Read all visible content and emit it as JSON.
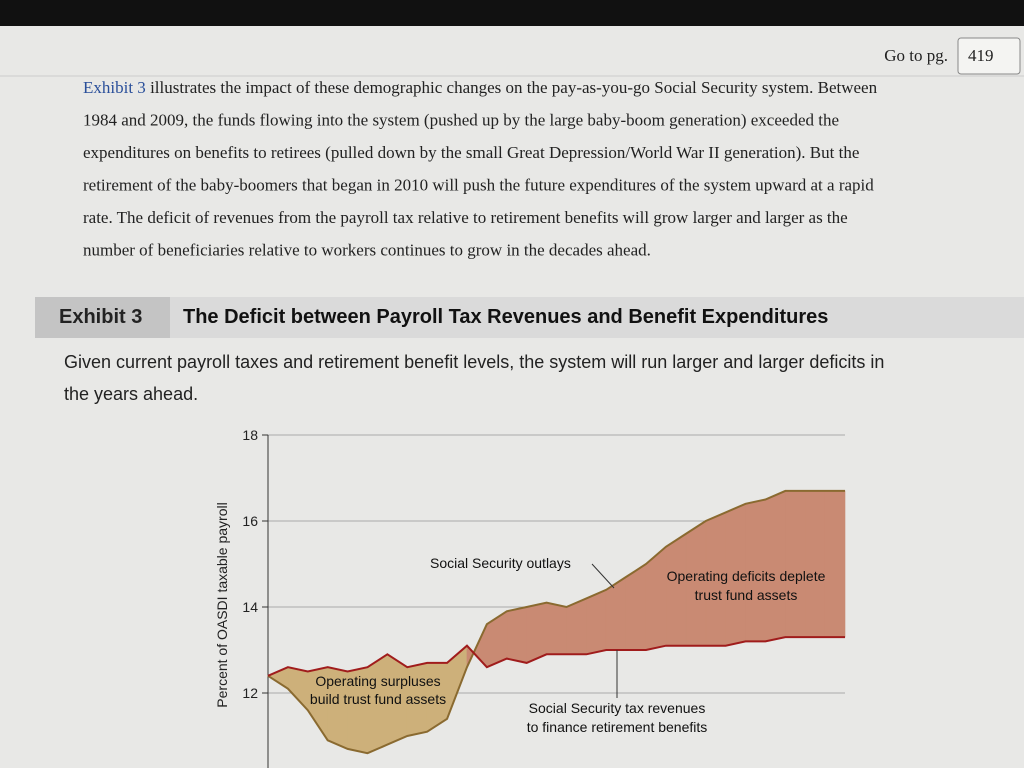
{
  "header": {
    "goto_label": "Go to pg.",
    "page_number": "419"
  },
  "paragraph": {
    "link": "Exhibit 3",
    "lines": [
      " illustrates the impact of these demographic changes on the pay-as-you-go Social Security system. Between",
      "1984 and 2009, the funds flowing into the system (pushed up by the large baby-boom generation) exceeded the",
      "expenditures on benefits to retirees (pulled down by the small Great Depression/World War II generation). But the",
      "retirement of the baby-boomers that began in 2010 will push the future expenditures of the system upward at a rapid",
      "rate. The deficit of revenues from the payroll tax relative to retirement benefits will grow larger and larger as the",
      "number of beneficiaries relative to workers continues to grow in the decades ahead."
    ]
  },
  "exhibit": {
    "label": "Exhibit 3",
    "title": "The Deficit between Payroll Tax Revenues and Benefit Expenditures",
    "subtitle": [
      "Given current payroll taxes and retirement benefit levels, the system will run larger and larger deficits in",
      "the years ahead."
    ]
  },
  "chart_data": {
    "type": "area-between",
    "y_label": "Percent of OASDI taxable payroll",
    "ylim": [
      10.5,
      18
    ],
    "yticks": [
      12,
      14,
      16,
      18
    ],
    "grid": true,
    "surplus_color": "#cdb07a",
    "deficit_color": "#c98a73",
    "series": [
      {
        "name": "Social Security outlays",
        "color": "#8a6a30",
        "values": [
          12.4,
          12.1,
          11.6,
          10.9,
          10.7,
          10.6,
          10.8,
          11.0,
          11.1,
          11.4,
          12.6,
          13.6,
          13.9,
          14.0,
          14.1,
          14.0,
          14.2,
          14.4,
          14.7,
          15.0,
          15.4,
          15.7,
          16.0,
          16.2,
          16.4,
          16.5,
          16.7,
          16.7,
          16.7,
          16.7
        ]
      },
      {
        "name": "Social Security tax revenues",
        "color": "#a01c1c",
        "values": [
          12.4,
          12.6,
          12.5,
          12.6,
          12.5,
          12.6,
          12.9,
          12.6,
          12.7,
          12.7,
          13.1,
          12.6,
          12.8,
          12.7,
          12.9,
          12.9,
          12.9,
          13.0,
          13.0,
          13.0,
          13.1,
          13.1,
          13.1,
          13.1,
          13.2,
          13.2,
          13.3,
          13.3,
          13.3,
          13.3
        ]
      }
    ],
    "annotations": [
      [
        "Operating deficits deplete",
        "trust fund assets"
      ],
      [
        "Operating surpluses",
        "build trust fund assets"
      ],
      [
        "Social Security tax revenues",
        "to finance retirement benefits"
      ]
    ]
  }
}
